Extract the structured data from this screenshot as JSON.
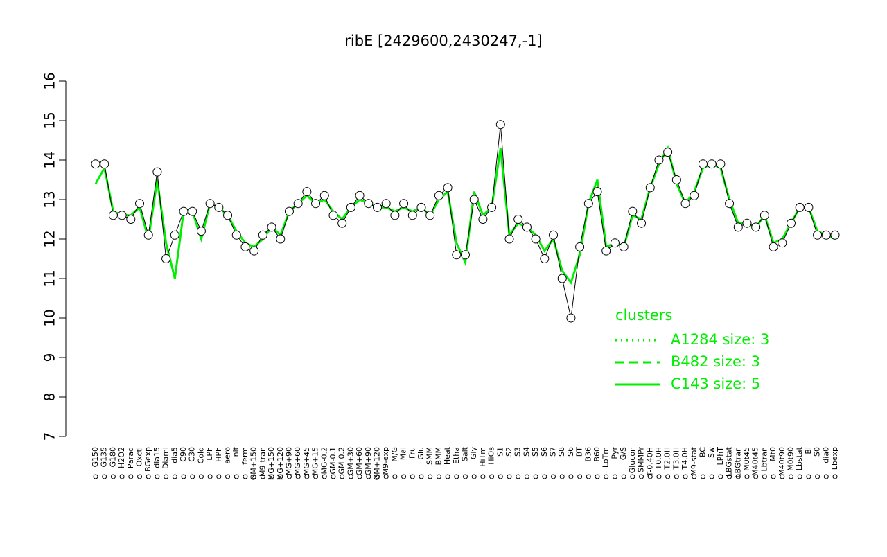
{
  "chart_data": {
    "type": "line",
    "title": "ribE [2429600,2430247,-1]",
    "categories": [
      "G150",
      "G135",
      "G180",
      "H2O2",
      "Paraq",
      "Oxctl",
      "LBGexp",
      "dia15",
      "Diami",
      "dia5",
      "C90",
      "C30",
      "Cold",
      "LPh",
      "HPh",
      "aero",
      "nit",
      "ferm",
      "GM+150",
      "M9-tran",
      "MG+150",
      "MG+120",
      "MG+90",
      "MG+60",
      "MG+45",
      "MG+15",
      "MG-0.2",
      "GM-0.1",
      "GM-0.2",
      "GM+30",
      "GM+60",
      "GM+90",
      "GM+120",
      "M9-exp",
      "M/G",
      "Mal",
      "Fru",
      "Glu",
      "SMM",
      "BMM",
      "Heat",
      "Etha",
      "Salt",
      "Gly",
      "HiTm",
      "HiOs",
      "S1",
      "S2",
      "S3",
      "S4",
      "S5",
      "S6",
      "S7",
      "S8",
      "S6",
      "BT",
      "B36",
      "B60",
      "LoTm",
      "Pyr",
      "G/S",
      "Glucon",
      "SMMPr",
      "T-0.40H",
      "T0.0H",
      "T2.0H",
      "T3.0H",
      "T4.0H",
      "M9-stat",
      "BC",
      "Sw",
      "LPhT",
      "LBGstat",
      "LBGtran",
      "M0t45",
      "M40t45",
      "Lbtran",
      "Mt0",
      "M40t90",
      "M0t90",
      "Lbstat",
      "Bl",
      "S0",
      "dia0",
      "Lbexp"
    ],
    "values": [
      13.9,
      13.9,
      12.6,
      12.6,
      12.5,
      12.9,
      12.1,
      13.7,
      11.5,
      12.1,
      12.7,
      12.7,
      12.2,
      12.9,
      12.8,
      12.6,
      12.1,
      11.8,
      11.7,
      12.1,
      12.3,
      12.0,
      12.7,
      12.9,
      13.2,
      12.9,
      13.1,
      12.6,
      12.4,
      12.8,
      13.1,
      12.9,
      12.8,
      12.9,
      12.6,
      12.9,
      12.6,
      12.8,
      12.6,
      13.1,
      13.3,
      11.6,
      11.6,
      13.0,
      12.5,
      12.8,
      14.9,
      12.0,
      12.5,
      12.3,
      12.0,
      11.5,
      12.1,
      11.0,
      10.0,
      11.8,
      12.9,
      13.2,
      11.7,
      11.9,
      11.8,
      12.7,
      12.4,
      13.3,
      14.0,
      14.2,
      13.5,
      12.9,
      13.1,
      13.9,
      13.9,
      13.9,
      12.9,
      12.3,
      12.4,
      12.3,
      12.6,
      11.8,
      11.9,
      12.4,
      12.8,
      12.8,
      12.1,
      12.1,
      12.1
    ],
    "color": "#000000",
    "ylim": [
      7,
      16
    ],
    "yticks": [
      7,
      8,
      9,
      10,
      11,
      12,
      13,
      14,
      15,
      16
    ],
    "legend": {
      "title": "clusters",
      "position": "right"
    },
    "series": [
      {
        "name": "A1284 size: 3",
        "color": "#00ee00",
        "dash": "dotted"
      },
      {
        "name": "B482 size: 3",
        "color": "#00ee00",
        "dash": "dashed"
      },
      {
        "name": "C143 size: 5",
        "color": "#00ee00",
        "dash": "solid",
        "values": [
          13.4,
          13.8,
          12.7,
          12.6,
          12.6,
          12.8,
          12.0,
          13.5,
          11.9,
          11.0,
          12.7,
          12.7,
          12.0,
          12.9,
          12.8,
          12.6,
          12.2,
          11.9,
          11.8,
          12.0,
          12.3,
          12.1,
          12.7,
          12.9,
          13.1,
          12.9,
          13.0,
          12.7,
          12.5,
          12.8,
          13.0,
          12.9,
          12.8,
          12.8,
          12.7,
          12.8,
          12.7,
          12.8,
          12.6,
          13.0,
          13.2,
          11.9,
          11.4,
          13.2,
          12.6,
          12.8,
          14.3,
          12.1,
          12.4,
          12.3,
          12.1,
          11.7,
          12.0,
          11.2,
          10.9,
          11.6,
          12.9,
          13.5,
          11.8,
          11.9,
          11.8,
          12.6,
          12.5,
          13.3,
          13.9,
          14.3,
          13.4,
          12.9,
          13.2,
          13.8,
          13.9,
          13.8,
          13.0,
          12.4,
          12.4,
          12.3,
          12.6,
          11.9,
          12.0,
          12.4,
          12.8,
          12.8,
          12.2,
          12.1,
          12.0
        ]
      }
    ]
  }
}
